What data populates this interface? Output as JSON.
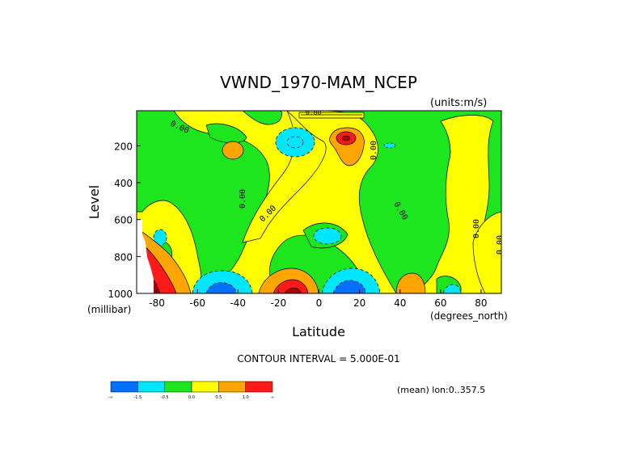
{
  "chart_data": {
    "type": "heatmap",
    "title": "VWND_1970-MAM_NCEP",
    "units_label": "(units:m/s)",
    "xlabel": "Latitude",
    "xunits": "(degrees_north)",
    "ylabel": "Level",
    "yunits": "(millibar)",
    "xlim": [
      -90,
      90
    ],
    "ylim": [
      1000,
      10
    ],
    "x_ticks": [
      -80,
      -60,
      -40,
      -20,
      0,
      20,
      40,
      60,
      80
    ],
    "x_tick_labels": [
      "-80",
      "-60",
      "-40",
      "-20",
      "0",
      "20",
      "40",
      "60",
      "80"
    ],
    "y_ticks": [
      200,
      400,
      600,
      800,
      1000
    ],
    "y_tick_labels": [
      "200",
      "400",
      "600",
      "800",
      "1000"
    ],
    "contour_interval_text": "CONTOUR INTERVAL = 5.000E-01",
    "mean_text": "(mean) lon:0..357.5",
    "contour_labels": [
      "0.00",
      "0.00",
      "0.00",
      "0.00",
      "0.00",
      "0.00",
      "0.00",
      "0.00",
      "0.00",
      "0.00",
      "0.00"
    ],
    "legend": {
      "colors": [
        "#0070ff",
        "#00e6ff",
        "#1ee61e",
        "#ffff00",
        "#ffa500",
        "#ff1a1a"
      ],
      "labels": [
        "-∞",
        "-1.5",
        "-0.5",
        "0.0",
        "0.5",
        "1.0",
        "∞"
      ]
    },
    "features": [
      {
        "type": "low",
        "lat": -12,
        "level": 170,
        "value": -0.5
      },
      {
        "type": "high",
        "lat": 13,
        "level": 150,
        "value": 1.5
      },
      {
        "type": "high",
        "lat": -43,
        "level": 200,
        "value": 0.5
      },
      {
        "type": "low",
        "lat": 42,
        "level": 200,
        "value": -0.5
      },
      {
        "type": "low",
        "lat": 5,
        "level": 700,
        "value": -0.5
      },
      {
        "type": "low",
        "lat": -78,
        "level": 700,
        "value": -0.5
      },
      {
        "type": "low",
        "lat": -52,
        "level": 980,
        "value": -2.0
      },
      {
        "type": "high",
        "lat": -17,
        "level": 970,
        "value": 2.0
      },
      {
        "type": "low",
        "lat": 15,
        "level": 980,
        "value": -2.0
      },
      {
        "type": "high",
        "lat": 42,
        "level": 970,
        "value": 0.5
      },
      {
        "type": "low",
        "lat": 63,
        "level": 990,
        "value": -0.5
      },
      {
        "type": "high",
        "lat": -83,
        "level": 950,
        "value": 2.0
      }
    ]
  },
  "colors": {
    "green": "#1ee61e",
    "yellow": "#ffff00",
    "cyan": "#00e6ff",
    "blue": "#0070ff",
    "orange": "#ffa500",
    "red": "#ff1a1a",
    "darkred": "#b00000",
    "white": "#ffffff"
  }
}
